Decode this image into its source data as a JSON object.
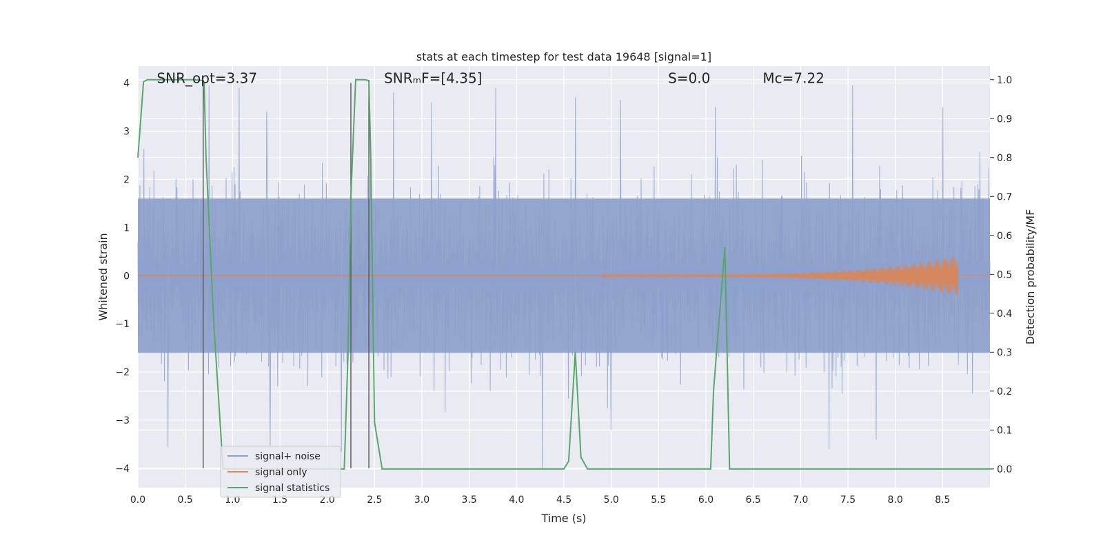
{
  "chart_data": {
    "type": "line",
    "title": "stats at each timestep for test data 19648 [signal=1]",
    "xlabel": "Time (s)",
    "ylabel": "Whitened strain",
    "y2label": "Detection probability/MF",
    "xlim": [
      0,
      9.0
    ],
    "ylim": [
      -4.4,
      4.35
    ],
    "y2lim": [
      -0.048,
      1.035
    ],
    "xticks": [
      0.0,
      0.5,
      1.0,
      1.5,
      2.0,
      2.5,
      3.0,
      3.5,
      4.0,
      4.5,
      5.0,
      5.5,
      6.0,
      6.5,
      7.0,
      7.5,
      8.0,
      8.5
    ],
    "xtick_labels": [
      "0.0",
      "0.5",
      "1.0",
      "1.5",
      "2.0",
      "2.5",
      "3.0",
      "3.5",
      "4.0",
      "4.5",
      "5.0",
      "5.5",
      "6.0",
      "6.5",
      "7.0",
      "7.5",
      "8.0",
      "8.5"
    ],
    "yticks": [
      -4,
      -3,
      -2,
      -1,
      0,
      1,
      2,
      3,
      4
    ],
    "ytick_labels": [
      "−4",
      "−3",
      "−2",
      "−1",
      "0",
      "1",
      "2",
      "3",
      "4"
    ],
    "y2ticks": [
      0.0,
      0.1,
      0.2,
      0.3,
      0.4,
      0.5,
      0.6,
      0.7,
      0.8,
      0.9,
      1.0
    ],
    "y2tick_labels": [
      "0.0",
      "0.1",
      "0.2",
      "0.3",
      "0.4",
      "0.5",
      "0.6",
      "0.7",
      "0.8",
      "0.9",
      "1.0"
    ],
    "grid": true,
    "legend_position": "lower-left",
    "annotations": [
      {
        "text": "SNR_opt=3.37",
        "x": 0.2,
        "y": 4.1
      },
      {
        "text": "SNRₘF=[4.35]",
        "x": 2.6,
        "y": 4.1
      },
      {
        "text": "S=0.0",
        "x": 5.6,
        "y": 4.1
      },
      {
        "text": "Mᴄ=7.22",
        "x": 6.6,
        "y": 4.1
      }
    ],
    "vertical_lines": [
      0.69,
      2.25,
      2.44
    ],
    "noise_envelope": {
      "min_abs": -4.0,
      "max_abs": 3.95,
      "typical_lo": -1.6,
      "typical_hi": 1.6
    },
    "series": [
      {
        "name": "signal+ noise",
        "color": "#8da0cb",
        "axis": "left",
        "style": "dense-noise",
        "peaks": [
          {
            "x": 0.75,
            "y": 3.95
          },
          {
            "x": 1.07,
            "y": 3.9
          },
          {
            "x": 1.36,
            "y": 3.4
          },
          {
            "x": 2.7,
            "y": 3.8
          },
          {
            "x": 3.1,
            "y": 3.6
          },
          {
            "x": 3.78,
            "y": 3.9
          },
          {
            "x": 4.62,
            "y": 3.7
          },
          {
            "x": 5.1,
            "y": 3.65
          },
          {
            "x": 6.1,
            "y": 3.5
          },
          {
            "x": 7.55,
            "y": 3.95
          },
          {
            "x": 8.5,
            "y": 3.5
          },
          {
            "x": 0.32,
            "y": -3.55
          },
          {
            "x": 1.4,
            "y": -3.55
          },
          {
            "x": 2.15,
            "y": -3.65
          },
          {
            "x": 4.27,
            "y": -4.0
          },
          {
            "x": 5.0,
            "y": -3.2
          },
          {
            "x": 7.3,
            "y": -3.6
          },
          {
            "x": 7.8,
            "y": -3.4
          }
        ]
      },
      {
        "name": "signal only",
        "color": "#dd8452",
        "axis": "left",
        "style": "chirp",
        "start_x": 4.9,
        "end_x": 8.66,
        "max_amplitude": 0.4
      },
      {
        "name": "signal statistics",
        "color": "#55a868",
        "axis": "right",
        "x": [
          0.0,
          0.06,
          0.1,
          0.2,
          0.6,
          0.69,
          0.7,
          0.72,
          0.8,
          0.9,
          2.1,
          2.18,
          2.22,
          2.25,
          2.3,
          2.4,
          2.44,
          2.46,
          2.5,
          2.58,
          4.5,
          4.55,
          4.62,
          4.68,
          4.75,
          6.05,
          6.08,
          6.2,
          6.25,
          9.0
        ],
        "values": [
          0.8,
          0.995,
          1.0,
          1.0,
          1.0,
          0.998,
          0.99,
          0.8,
          0.38,
          0.0,
          0.0,
          0.0,
          0.3,
          0.7,
          1.0,
          1.0,
          0.998,
          0.8,
          0.12,
          0.0,
          0.0,
          0.02,
          0.3,
          0.03,
          0.0,
          0.0,
          0.2,
          0.57,
          0.0,
          0.0
        ]
      }
    ]
  }
}
